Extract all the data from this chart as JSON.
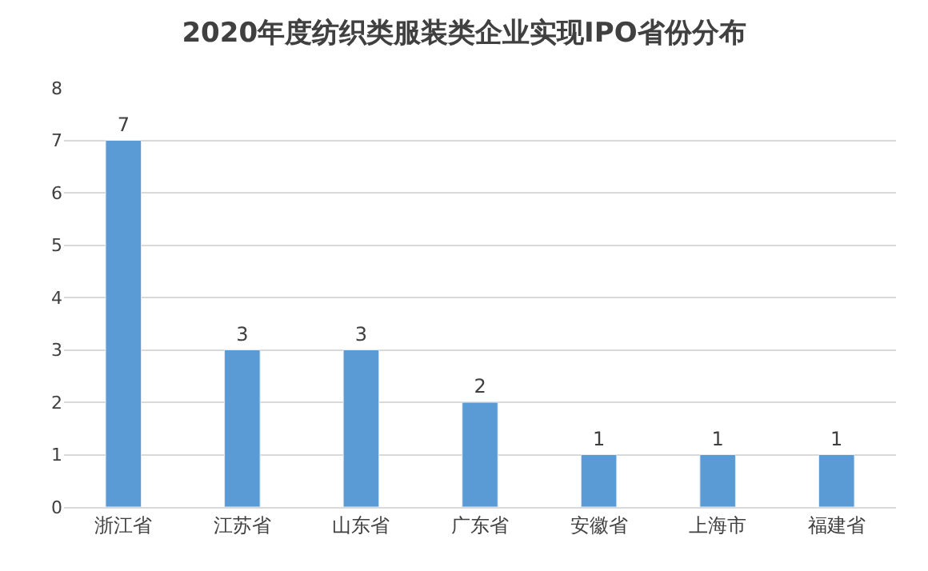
{
  "chart_data": {
    "type": "bar",
    "title": "2020年度纺织类服装类企业实现IPO省份分布",
    "categories": [
      "浙江省",
      "江苏省",
      "山东省",
      "广东省",
      "安徽省",
      "上海市",
      "福建省"
    ],
    "values": [
      7,
      3,
      3,
      2,
      1,
      1,
      1
    ],
    "color": "#5b9bd5",
    "ylim": [
      0,
      8
    ],
    "yticks": [
      0,
      1,
      2,
      3,
      4,
      5,
      6,
      7,
      8
    ],
    "grid": "y",
    "data_labels": true
  }
}
